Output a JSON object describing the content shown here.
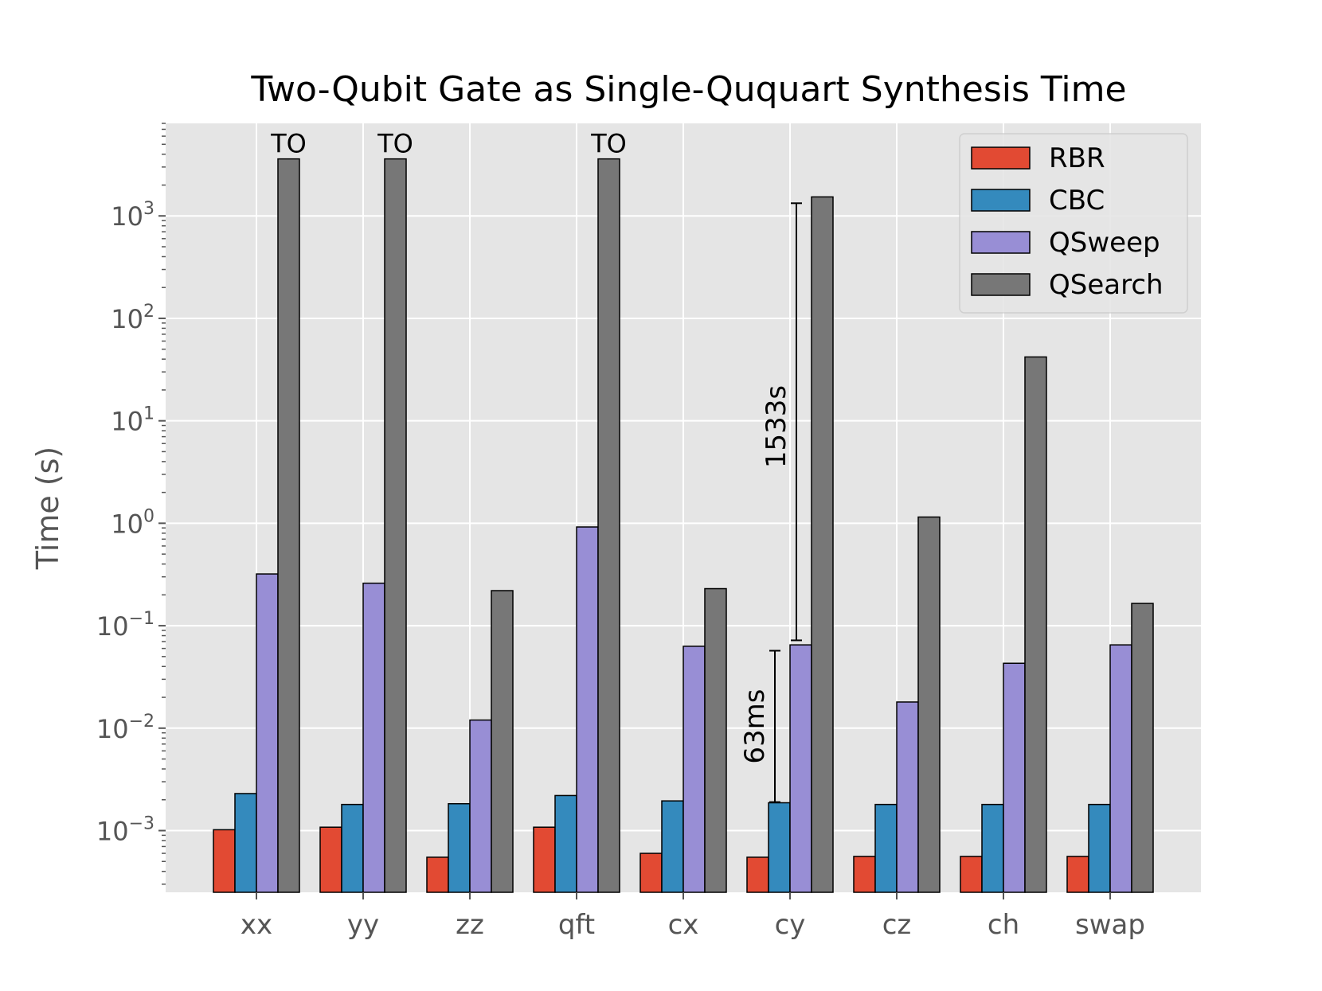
{
  "chart_data": {
    "type": "bar",
    "title": "Two-Qubit Gate as Single-Ququart Synthesis Time",
    "xlabel": "",
    "ylabel": "Time (s)",
    "yscale": "log",
    "ylim": [
      0.00025,
      8000
    ],
    "yticks": [
      {
        "value": 0.001,
        "base": "10",
        "exp": "−3"
      },
      {
        "value": 0.01,
        "base": "10",
        "exp": "−2"
      },
      {
        "value": 0.1,
        "base": "10",
        "exp": "−1"
      },
      {
        "value": 1,
        "base": "10",
        "exp": "0"
      },
      {
        "value": 10,
        "base": "10",
        "exp": "1"
      },
      {
        "value": 100,
        "base": "10",
        "exp": "2"
      },
      {
        "value": 1000,
        "base": "10",
        "exp": "3"
      }
    ],
    "grid": true,
    "legend_position": "top-right",
    "categories": [
      "xx",
      "yy",
      "zz",
      "qft",
      "cx",
      "cy",
      "cz",
      "ch",
      "swap"
    ],
    "series": [
      {
        "name": "RBR",
        "color": "#E24A33",
        "values": [
          0.00102,
          0.00108,
          0.00055,
          0.00108,
          0.0006,
          0.00055,
          0.00056,
          0.00056,
          0.00056
        ]
      },
      {
        "name": "CBC",
        "color": "#348ABD",
        "values": [
          0.0023,
          0.0018,
          0.00183,
          0.0022,
          0.00195,
          0.00187,
          0.0018,
          0.0018,
          0.0018
        ]
      },
      {
        "name": "QSweep",
        "color": "#988ED5",
        "values": [
          0.32,
          0.26,
          0.012,
          0.92,
          0.063,
          0.065,
          0.018,
          0.043,
          0.065
        ]
      },
      {
        "name": "QSearch",
        "color": "#777777",
        "values": [
          3600,
          3600,
          0.22,
          3600,
          0.23,
          1533,
          1.15,
          42,
          0.165
        ]
      }
    ],
    "annotations": [
      {
        "category": "xx",
        "series": "QSearch",
        "text": "TO"
      },
      {
        "category": "yy",
        "series": "QSearch",
        "text": "TO"
      },
      {
        "category": "qft",
        "series": "QSearch",
        "text": "TO"
      }
    ],
    "range_markers": [
      {
        "category": "cy",
        "from": 0.0019,
        "to": 0.057,
        "label": "63ms",
        "slot": "CBC"
      },
      {
        "category": "cy",
        "from": 0.072,
        "to": 1330,
        "label": "1533s",
        "slot": "QSweep"
      }
    ]
  }
}
